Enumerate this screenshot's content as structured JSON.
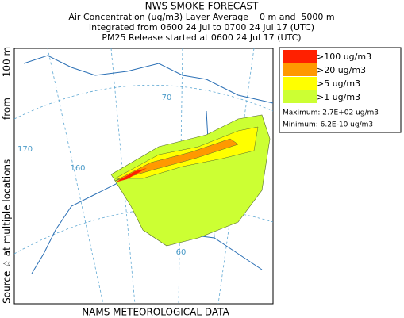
{
  "header": {
    "title": "NWS SMOKE FORECAST",
    "lines": [
      "Air Concentration (ug/m3) Layer Average    0 m and  5000 m",
      "Integrated from 0600 24 Jul to 0700 24 Jul 17 (UTC)",
      "PM25 Release started at 0600 24 Jul 17 (UTC)"
    ]
  },
  "side_label": {
    "source": "Source ☆",
    "locations": "at multiple locations",
    "from": "from",
    "height": "100 m"
  },
  "legend": {
    "items": [
      {
        "label": ">100 ug/m3",
        "color": "#ff2000"
      },
      {
        "label": ">20 ug/m3",
        "color": "#ff9900"
      },
      {
        "label": ">5 ug/m3",
        "color": "#ffff00"
      },
      {
        "label": ">1 ug/m3",
        "color": "#ccff33"
      }
    ],
    "maximum": "Maximum: 2.7E+02 ug/m3",
    "minimum": "Minimum: 6.2E-10 ug/m3"
  },
  "map": {
    "labels": [
      "70",
      "170",
      "160",
      "60"
    ]
  },
  "footer": "NAMS METEOROLOGICAL DATA"
}
